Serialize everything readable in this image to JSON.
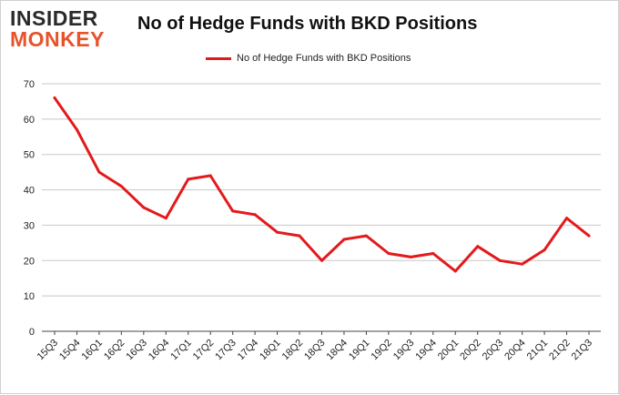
{
  "logo": {
    "line1": "INSIDER",
    "line2": "MONKEY"
  },
  "colors": {
    "series": "#e31a1c",
    "grid": "#c8c8c8",
    "axis": "#444444",
    "logo_dark": "#2a2a2a",
    "logo_accent": "#e8532a"
  },
  "chart_data": {
    "type": "line",
    "title": "No of Hedge Funds with BKD Positions",
    "xlabel": "",
    "ylabel": "",
    "ylim": [
      0,
      70
    ],
    "yticks": [
      0,
      10,
      20,
      30,
      40,
      50,
      60,
      70
    ],
    "grid": true,
    "legend_position": "top",
    "categories": [
      "15Q3",
      "15Q4",
      "16Q1",
      "16Q2",
      "16Q3",
      "16Q4",
      "17Q1",
      "17Q2",
      "17Q3",
      "17Q4",
      "18Q1",
      "18Q2",
      "18Q3",
      "18Q4",
      "19Q1",
      "19Q2",
      "19Q3",
      "19Q4",
      "20Q1",
      "20Q2",
      "20Q3",
      "20Q4",
      "21Q1",
      "21Q2",
      "21Q3"
    ],
    "series": [
      {
        "name": "No of Hedge Funds with BKD Positions",
        "values": [
          66,
          57,
          45,
          41,
          35,
          32,
          43,
          44,
          34,
          33,
          28,
          27,
          20,
          26,
          27,
          22,
          21,
          22,
          17,
          24,
          20,
          19,
          23,
          32,
          27
        ]
      }
    ]
  }
}
